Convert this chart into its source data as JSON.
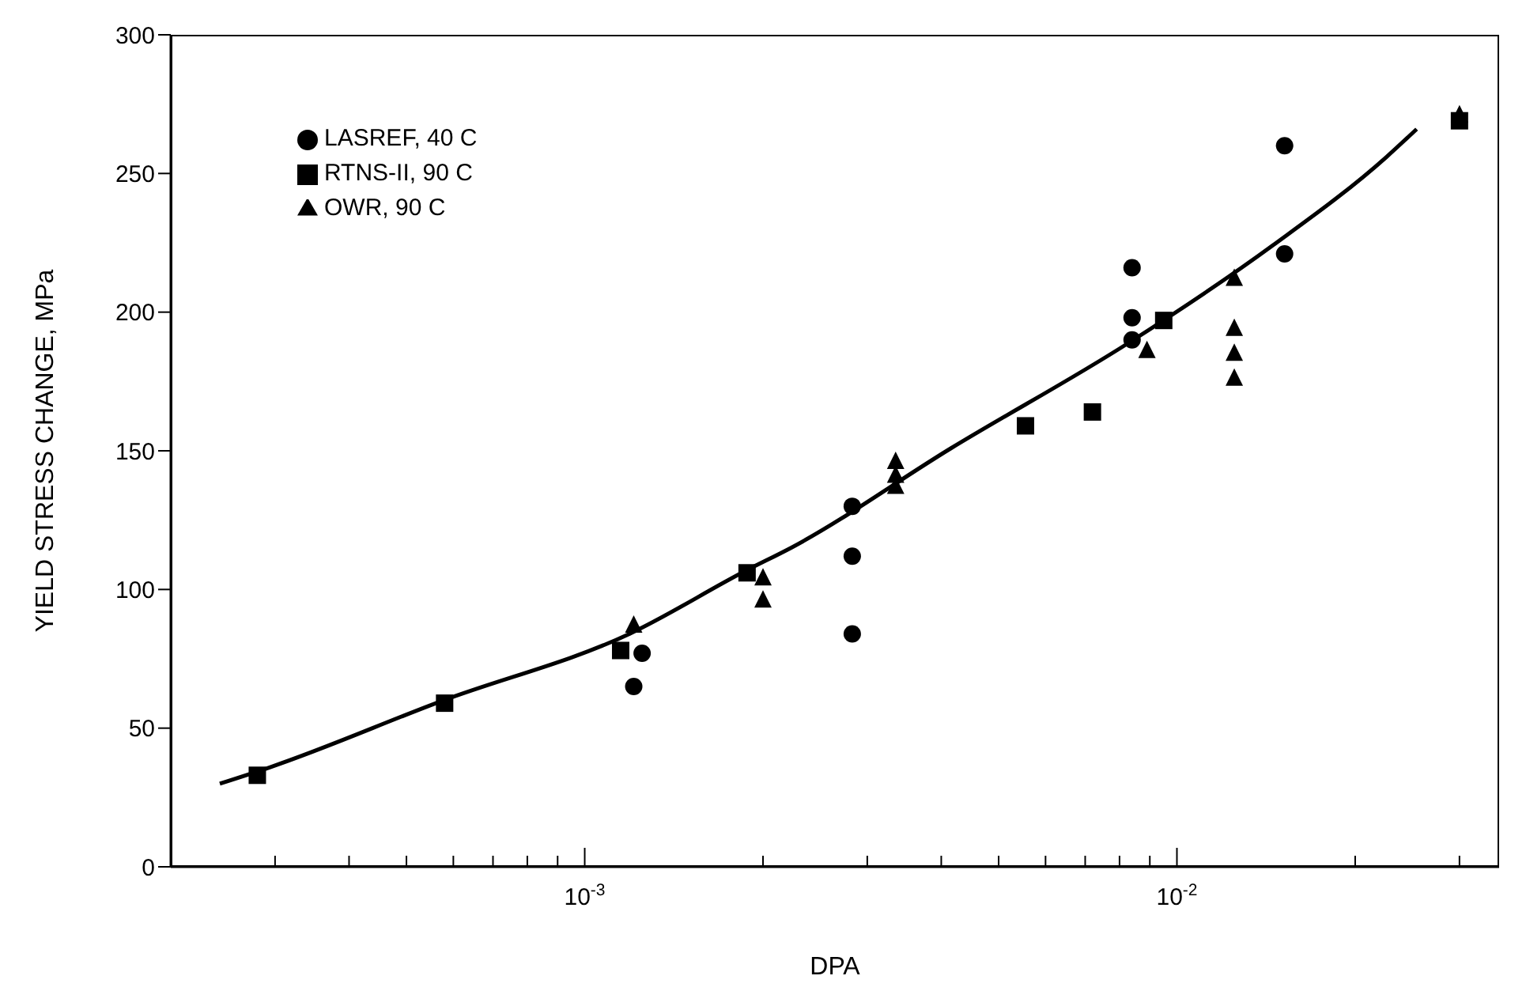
{
  "chart_data": {
    "type": "scatter",
    "xlabel": "DPA",
    "ylabel": "YIELD STRESS CHANGE, MPa",
    "log": "x",
    "legend": "top left",
    "grid": false,
    "xlim": [
      0.0002,
      0.035
    ],
    "ylim": [
      0,
      300
    ],
    "yticks": [
      0,
      50,
      100,
      150,
      200,
      250,
      300
    ],
    "xticks": [
      {
        "value": 0.0003,
        "label": null
      },
      {
        "value": 0.0004,
        "label": null
      },
      {
        "value": 0.0005,
        "label": null
      },
      {
        "value": 0.0006,
        "label": null
      },
      {
        "value": 0.0007,
        "label": null
      },
      {
        "value": 0.0008,
        "label": null
      },
      {
        "value": 0.0009,
        "label": null
      },
      {
        "value": 0.001,
        "label": "10$^{-3}$"
      },
      {
        "value": 0.002,
        "label": null
      },
      {
        "value": 0.003,
        "label": null
      },
      {
        "value": 0.004,
        "label": null
      },
      {
        "value": 0.005,
        "label": null
      },
      {
        "value": 0.006,
        "label": null
      },
      {
        "value": 0.007,
        "label": null
      },
      {
        "value": 0.008,
        "label": null
      },
      {
        "value": 0.009,
        "label": null
      },
      {
        "value": 0.01,
        "label": "10$^{-2}$"
      },
      {
        "value": 0.02,
        "label": null
      },
      {
        "value": 0.03,
        "label": null
      }
    ],
    "series": [
      {
        "name": "LASREF, 40 C",
        "color": "#000000",
        "marker": "circle",
        "x": [
          0.00125,
          0.00121,
          0.00283,
          0.00283,
          0.00283,
          0.0084,
          0.0084,
          0.0084,
          0.0152,
          0.0152
        ],
        "values": [
          77,
          65,
          112,
          130,
          84,
          216,
          198,
          190,
          221,
          260
        ]
      },
      {
        "name": "RTNS-II, 90 C",
        "color": "#000000",
        "marker": "square",
        "x": [
          0.00028,
          0.00058,
          0.00115,
          0.00188,
          0.00555,
          0.0072,
          0.0095,
          0.03
        ],
        "values": [
          33,
          59,
          78,
          106,
          159,
          164,
          197,
          269
        ]
      },
      {
        "name": "OWR, 90 C",
        "color": "#000000",
        "marker": "triangle",
        "x": [
          0.00121,
          0.002,
          0.002,
          0.00335,
          0.00335,
          0.00335,
          0.0089,
          0.0125,
          0.0125,
          0.0125,
          0.0125,
          0.03
        ],
        "values": [
          87,
          104,
          96,
          146,
          141,
          137,
          186,
          212,
          194,
          185,
          176,
          271
        ]
      },
      {
        "type": "line",
        "color": "#000000",
        "marker": "none",
        "x": [
          0.000242,
          0.000295,
          0.000577,
          0.00119,
          0.00188,
          0.00223,
          0.00416,
          0.0083,
          0.0145,
          0.0226,
          0.0254
        ],
        "values": [
          30,
          36,
          60,
          84,
          107,
          115,
          151,
          189,
          224,
          256,
          266
        ]
      }
    ]
  }
}
